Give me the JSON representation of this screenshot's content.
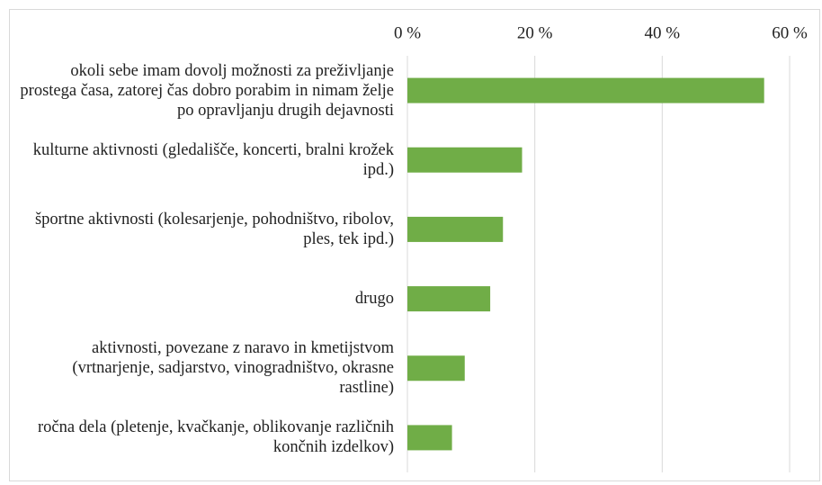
{
  "chart_data": {
    "type": "bar",
    "orientation": "horizontal",
    "categories": [
      "okoli sebe imam dovolj možnosti za preživljanje prostega časa, zatorej čas dobro porabim in nimam želje po opravljanju drugih dejavnosti",
      "kulturne aktivnosti (gledališče, koncerti, bralni krožek ipd.)",
      "športne aktivnosti (kolesarjenje, pohodništvo, ribolov, ples, tek ipd.)",
      "drugo",
      "aktivnosti, povezane z naravo in kmetijstvom (vrtnarjenje, sadjarstvo, vinogradništvo, okrasne rastline)",
      "ročna dela (pletenje, kvačkanje, oblikovanje različnih končnih izdelkov)"
    ],
    "values": [
      56,
      18,
      15,
      13,
      9,
      7
    ],
    "color": "#70ad47",
    "xlim": [
      0,
      60
    ],
    "xticks": [
      {
        "value": 0,
        "label": "0 %"
      },
      {
        "value": 20,
        "label": "20 %"
      },
      {
        "value": 40,
        "label": "40 %"
      },
      {
        "value": 60,
        "label": "60 %"
      }
    ],
    "grid": true
  }
}
